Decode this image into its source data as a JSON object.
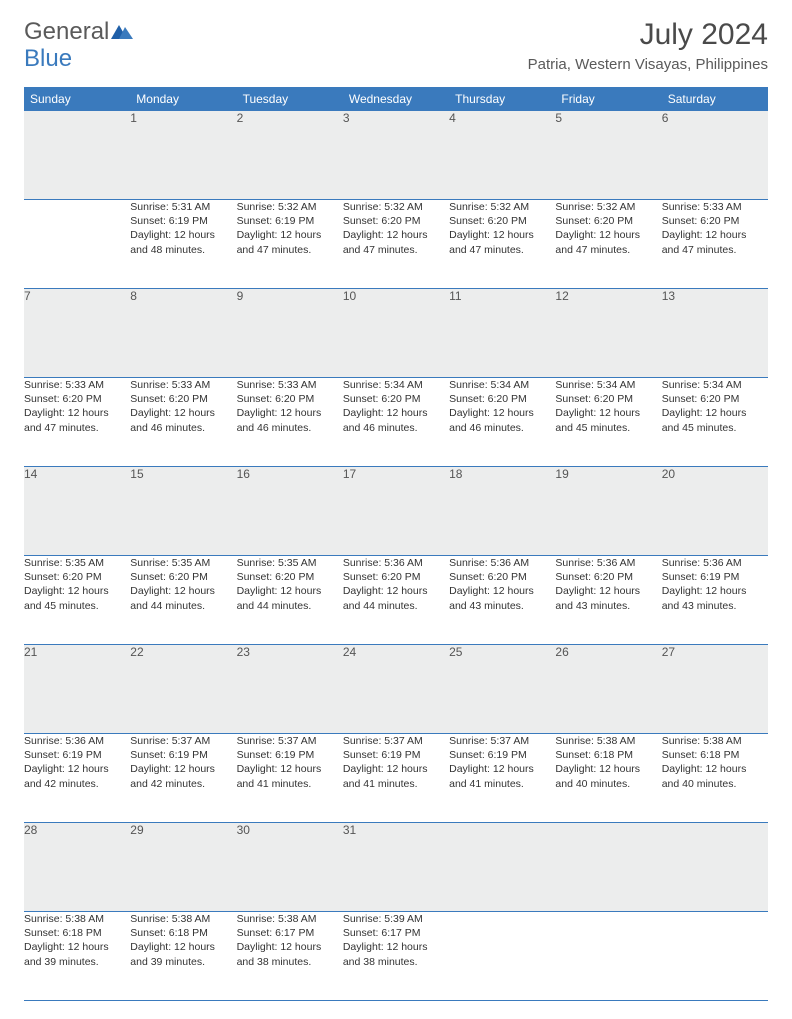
{
  "brand": {
    "word1": "General",
    "word2": "Blue"
  },
  "title": "July 2024",
  "location": "Patria, Western Visayas, Philippines",
  "colors": {
    "header_bg": "#3a7abd",
    "header_text": "#ffffff",
    "daynum_bg": "#eceded",
    "border": "#3a7abd",
    "text": "#333333",
    "title_text": "#4a4a4a"
  },
  "day_names": [
    "Sunday",
    "Monday",
    "Tuesday",
    "Wednesday",
    "Thursday",
    "Friday",
    "Saturday"
  ],
  "weeks": [
    [
      null,
      {
        "n": "1",
        "sr": "Sunrise: 5:31 AM",
        "ss": "Sunset: 6:19 PM",
        "d1": "Daylight: 12 hours",
        "d2": "and 48 minutes."
      },
      {
        "n": "2",
        "sr": "Sunrise: 5:32 AM",
        "ss": "Sunset: 6:19 PM",
        "d1": "Daylight: 12 hours",
        "d2": "and 47 minutes."
      },
      {
        "n": "3",
        "sr": "Sunrise: 5:32 AM",
        "ss": "Sunset: 6:20 PM",
        "d1": "Daylight: 12 hours",
        "d2": "and 47 minutes."
      },
      {
        "n": "4",
        "sr": "Sunrise: 5:32 AM",
        "ss": "Sunset: 6:20 PM",
        "d1": "Daylight: 12 hours",
        "d2": "and 47 minutes."
      },
      {
        "n": "5",
        "sr": "Sunrise: 5:32 AM",
        "ss": "Sunset: 6:20 PM",
        "d1": "Daylight: 12 hours",
        "d2": "and 47 minutes."
      },
      {
        "n": "6",
        "sr": "Sunrise: 5:33 AM",
        "ss": "Sunset: 6:20 PM",
        "d1": "Daylight: 12 hours",
        "d2": "and 47 minutes."
      }
    ],
    [
      {
        "n": "7",
        "sr": "Sunrise: 5:33 AM",
        "ss": "Sunset: 6:20 PM",
        "d1": "Daylight: 12 hours",
        "d2": "and 47 minutes."
      },
      {
        "n": "8",
        "sr": "Sunrise: 5:33 AM",
        "ss": "Sunset: 6:20 PM",
        "d1": "Daylight: 12 hours",
        "d2": "and 46 minutes."
      },
      {
        "n": "9",
        "sr": "Sunrise: 5:33 AM",
        "ss": "Sunset: 6:20 PM",
        "d1": "Daylight: 12 hours",
        "d2": "and 46 minutes."
      },
      {
        "n": "10",
        "sr": "Sunrise: 5:34 AM",
        "ss": "Sunset: 6:20 PM",
        "d1": "Daylight: 12 hours",
        "d2": "and 46 minutes."
      },
      {
        "n": "11",
        "sr": "Sunrise: 5:34 AM",
        "ss": "Sunset: 6:20 PM",
        "d1": "Daylight: 12 hours",
        "d2": "and 46 minutes."
      },
      {
        "n": "12",
        "sr": "Sunrise: 5:34 AM",
        "ss": "Sunset: 6:20 PM",
        "d1": "Daylight: 12 hours",
        "d2": "and 45 minutes."
      },
      {
        "n": "13",
        "sr": "Sunrise: 5:34 AM",
        "ss": "Sunset: 6:20 PM",
        "d1": "Daylight: 12 hours",
        "d2": "and 45 minutes."
      }
    ],
    [
      {
        "n": "14",
        "sr": "Sunrise: 5:35 AM",
        "ss": "Sunset: 6:20 PM",
        "d1": "Daylight: 12 hours",
        "d2": "and 45 minutes."
      },
      {
        "n": "15",
        "sr": "Sunrise: 5:35 AM",
        "ss": "Sunset: 6:20 PM",
        "d1": "Daylight: 12 hours",
        "d2": "and 44 minutes."
      },
      {
        "n": "16",
        "sr": "Sunrise: 5:35 AM",
        "ss": "Sunset: 6:20 PM",
        "d1": "Daylight: 12 hours",
        "d2": "and 44 minutes."
      },
      {
        "n": "17",
        "sr": "Sunrise: 5:36 AM",
        "ss": "Sunset: 6:20 PM",
        "d1": "Daylight: 12 hours",
        "d2": "and 44 minutes."
      },
      {
        "n": "18",
        "sr": "Sunrise: 5:36 AM",
        "ss": "Sunset: 6:20 PM",
        "d1": "Daylight: 12 hours",
        "d2": "and 43 minutes."
      },
      {
        "n": "19",
        "sr": "Sunrise: 5:36 AM",
        "ss": "Sunset: 6:20 PM",
        "d1": "Daylight: 12 hours",
        "d2": "and 43 minutes."
      },
      {
        "n": "20",
        "sr": "Sunrise: 5:36 AM",
        "ss": "Sunset: 6:19 PM",
        "d1": "Daylight: 12 hours",
        "d2": "and 43 minutes."
      }
    ],
    [
      {
        "n": "21",
        "sr": "Sunrise: 5:36 AM",
        "ss": "Sunset: 6:19 PM",
        "d1": "Daylight: 12 hours",
        "d2": "and 42 minutes."
      },
      {
        "n": "22",
        "sr": "Sunrise: 5:37 AM",
        "ss": "Sunset: 6:19 PM",
        "d1": "Daylight: 12 hours",
        "d2": "and 42 minutes."
      },
      {
        "n": "23",
        "sr": "Sunrise: 5:37 AM",
        "ss": "Sunset: 6:19 PM",
        "d1": "Daylight: 12 hours",
        "d2": "and 41 minutes."
      },
      {
        "n": "24",
        "sr": "Sunrise: 5:37 AM",
        "ss": "Sunset: 6:19 PM",
        "d1": "Daylight: 12 hours",
        "d2": "and 41 minutes."
      },
      {
        "n": "25",
        "sr": "Sunrise: 5:37 AM",
        "ss": "Sunset: 6:19 PM",
        "d1": "Daylight: 12 hours",
        "d2": "and 41 minutes."
      },
      {
        "n": "26",
        "sr": "Sunrise: 5:38 AM",
        "ss": "Sunset: 6:18 PM",
        "d1": "Daylight: 12 hours",
        "d2": "and 40 minutes."
      },
      {
        "n": "27",
        "sr": "Sunrise: 5:38 AM",
        "ss": "Sunset: 6:18 PM",
        "d1": "Daylight: 12 hours",
        "d2": "and 40 minutes."
      }
    ],
    [
      {
        "n": "28",
        "sr": "Sunrise: 5:38 AM",
        "ss": "Sunset: 6:18 PM",
        "d1": "Daylight: 12 hours",
        "d2": "and 39 minutes."
      },
      {
        "n": "29",
        "sr": "Sunrise: 5:38 AM",
        "ss": "Sunset: 6:18 PM",
        "d1": "Daylight: 12 hours",
        "d2": "and 39 minutes."
      },
      {
        "n": "30",
        "sr": "Sunrise: 5:38 AM",
        "ss": "Sunset: 6:17 PM",
        "d1": "Daylight: 12 hours",
        "d2": "and 38 minutes."
      },
      {
        "n": "31",
        "sr": "Sunrise: 5:39 AM",
        "ss": "Sunset: 6:17 PM",
        "d1": "Daylight: 12 hours",
        "d2": "and 38 minutes."
      },
      null,
      null,
      null
    ]
  ]
}
